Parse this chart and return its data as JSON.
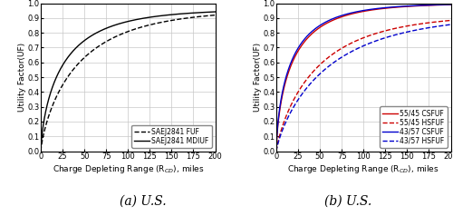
{
  "x_range": [
    0,
    200
  ],
  "y_range": [
    0,
    1
  ],
  "xticks": [
    0,
    25,
    50,
    75,
    100,
    125,
    150,
    175,
    200
  ],
  "yticks": [
    0,
    0.1,
    0.2,
    0.3,
    0.4,
    0.5,
    0.6,
    0.7,
    0.8,
    0.9,
    1
  ],
  "xlabel": "Charge Depleting Range (R$_{CD}$), miles",
  "ylabel": "Utility Factor(UF)",
  "panel_a_title": "(a) U.S.",
  "panel_b_title": "(b) U.S.",
  "legend_a": [
    "SAEJ2841 FUF",
    "SAEJ2841 MDIUF"
  ],
  "legend_b": [
    "55/45 CSFUF",
    "55/45 HSFUF",
    "43/57 CSFUF",
    "43/57 HSFUF"
  ],
  "color_a": "#000000",
  "color_55_45": "#cc0000",
  "color_43_57": "#0000cc",
  "grid_color": "#c8c8c8",
  "background": "#ffffff",
  "title_fontsize": 10,
  "label_fontsize": 6.5,
  "tick_fontsize": 6,
  "legend_fontsize": 5.5,
  "linewidth": 1.0,
  "fuf_params": [
    0.96,
    0.022,
    0.78
  ],
  "mdiuf_params": [
    0.96,
    0.036,
    0.7
  ],
  "cs_55_45_params": [
    1.0,
    0.048,
    0.68
  ],
  "hs_55_45_params": [
    0.925,
    0.02,
    0.82
  ],
  "cs_43_57_params": [
    1.0,
    0.052,
    0.67
  ],
  "hs_43_57_params": [
    0.925,
    0.016,
    0.82
  ]
}
